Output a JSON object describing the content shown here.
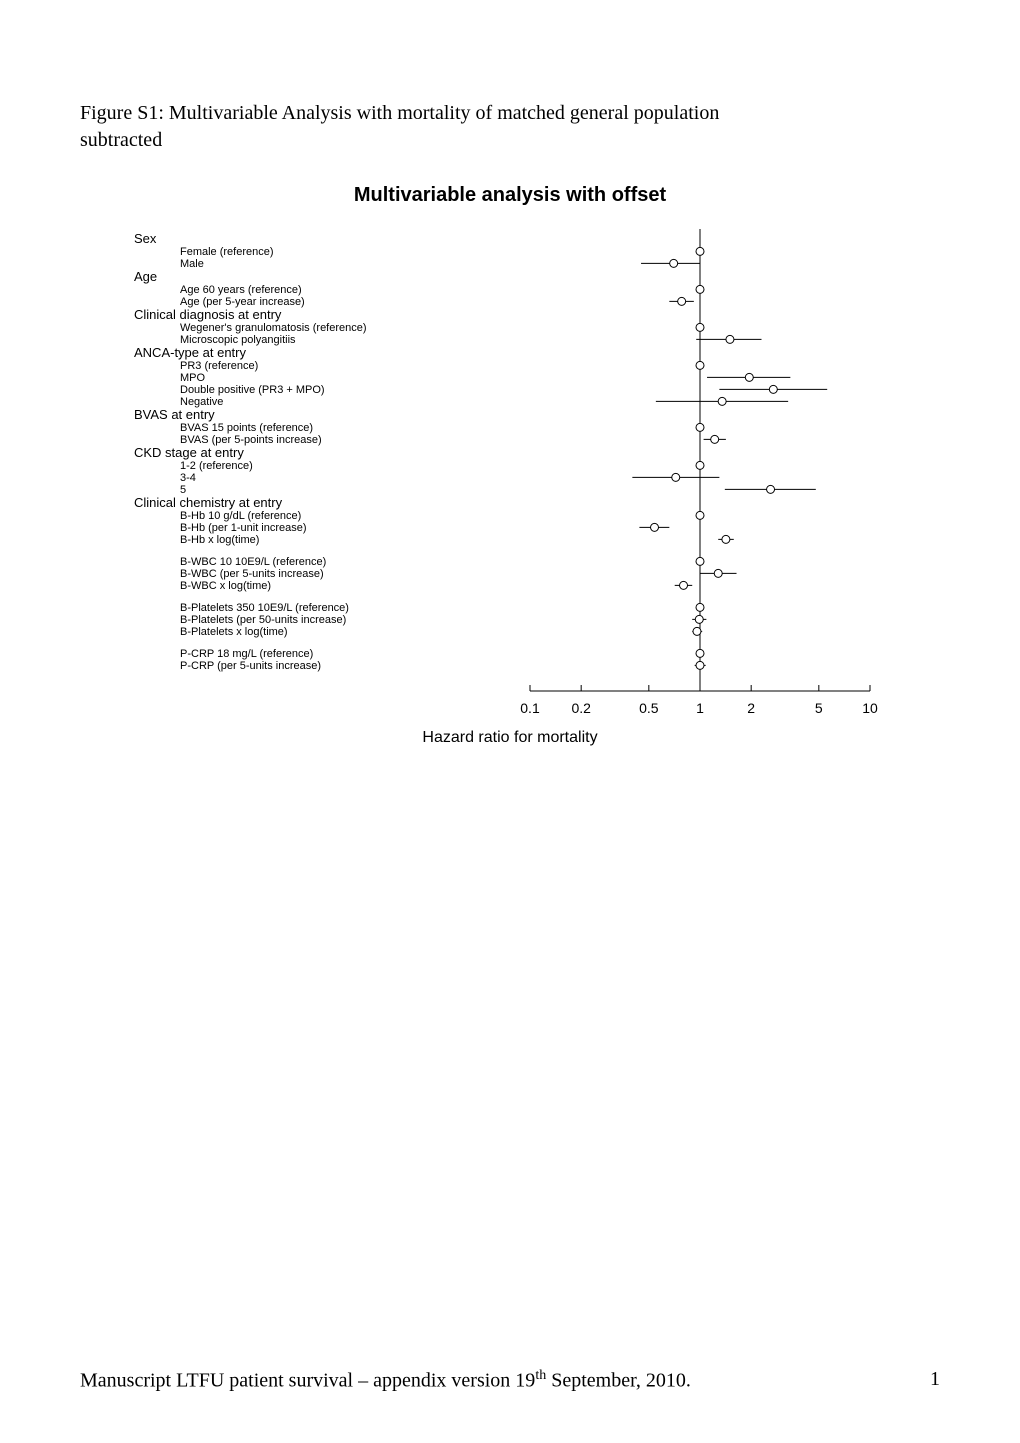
{
  "caption_line1": "Figure S1: Multivariable Analysis with mortality of matched general population",
  "caption_line2": "subtracted",
  "chart": {
    "title": "Multivariable analysis with offset",
    "x_axis_label": "Hazard ratio for mortality",
    "x_ticks": [
      0.1,
      0.2,
      0.5,
      1,
      2,
      5,
      10
    ],
    "x_scale": "log",
    "ref_line_x": 1,
    "colors": {
      "axis": "#000000",
      "text": "#000000",
      "marker_stroke": "#000000",
      "marker_fill": "#ffffff",
      "ci_line": "#000000",
      "ref_line": "#000000",
      "background": "#ffffff"
    },
    "font_family_labels": "Arial, Helvetica, sans-serif",
    "group_fontsize": 13,
    "row_fontsize": 11,
    "tick_fontsize": 14,
    "marker_radius": 4,
    "line_width": 1,
    "groups": [
      {
        "label": "Sex",
        "rows": [
          {
            "label": "Female (reference)",
            "hr": 1,
            "low": null,
            "high": null,
            "ref": true
          },
          {
            "label": "Male",
            "hr": 0.7,
            "low": 0.45,
            "high": 1.0
          }
        ]
      },
      {
        "label": "Age",
        "rows": [
          {
            "label": "Age 60 years (reference)",
            "hr": 1,
            "low": null,
            "high": null,
            "ref": true
          },
          {
            "label": "Age (per 5-year increase)",
            "hr": 0.78,
            "low": 0.66,
            "high": 0.92
          }
        ]
      },
      {
        "label": "Clinical diagnosis at entry",
        "rows": [
          {
            "label": "Wegener's granulomatosis (reference)",
            "hr": 1,
            "low": null,
            "high": null,
            "ref": true
          },
          {
            "label": "Microscopic polyangitiis",
            "hr": 1.5,
            "low": 0.95,
            "high": 2.3
          }
        ]
      },
      {
        "label": "ANCA-type at entry",
        "rows": [
          {
            "label": "PR3 (reference)",
            "hr": 1,
            "low": null,
            "high": null,
            "ref": true
          },
          {
            "label": "MPO",
            "hr": 1.95,
            "low": 1.1,
            "high": 3.4
          },
          {
            "label": "Double positive (PR3 + MPO)",
            "hr": 2.7,
            "low": 1.3,
            "high": 5.6
          },
          {
            "label": "Negative",
            "hr": 1.35,
            "low": 0.55,
            "high": 3.3
          }
        ]
      },
      {
        "label": "BVAS at entry",
        "rows": [
          {
            "label": "BVAS 15 points (reference)",
            "hr": 1,
            "low": null,
            "high": null,
            "ref": true
          },
          {
            "label": "BVAS (per 5-points increase)",
            "hr": 1.22,
            "low": 1.05,
            "high": 1.42
          }
        ]
      },
      {
        "label": "CKD stage at entry",
        "rows": [
          {
            "label": "1-2 (reference)",
            "hr": 1,
            "low": null,
            "high": null,
            "ref": true
          },
          {
            "label": "3-4",
            "hr": 0.72,
            "low": 0.4,
            "high": 1.3
          },
          {
            "label": "5",
            "hr": 2.6,
            "low": 1.4,
            "high": 4.8
          }
        ]
      },
      {
        "label": "Clinical chemistry at entry",
        "rows": [
          {
            "label": "B-Hb 10 g/dL (reference)",
            "hr": 1,
            "low": null,
            "high": null,
            "ref": true
          },
          {
            "label": "B-Hb (per 1-unit increase)",
            "hr": 0.54,
            "low": 0.44,
            "high": 0.66
          },
          {
            "label": "B-Hb x log(time)",
            "hr": 1.42,
            "low": 1.28,
            "high": 1.58
          },
          {
            "label": "",
            "spacer": true
          },
          {
            "label": "B-WBC 10 10E9/L (reference)",
            "hr": 1,
            "low": null,
            "high": null,
            "ref": true
          },
          {
            "label": "B-WBC (per 5-units increase)",
            "hr": 1.28,
            "low": 1.0,
            "high": 1.64
          },
          {
            "label": "B-WBC x log(time)",
            "hr": 0.8,
            "low": 0.71,
            "high": 0.9
          },
          {
            "label": "",
            "spacer": true
          },
          {
            "label": "B-Platelets 350 10E9/L (reference)",
            "hr": 1,
            "low": null,
            "high": null,
            "ref": true
          },
          {
            "label": "B-Platelets (per 50-units increase)",
            "hr": 0.99,
            "low": 0.9,
            "high": 1.09
          },
          {
            "label": "B-Platelets x log(time)",
            "hr": 0.96,
            "low": 0.9,
            "high": 1.03
          },
          {
            "label": "",
            "spacer": true
          },
          {
            "label": "P-CRP 18 mg/L (reference)",
            "hr": 1,
            "low": null,
            "high": null,
            "ref": true
          },
          {
            "label": "P-CRP (per 5-units increase)",
            "hr": 1.0,
            "low": 0.93,
            "high": 1.08
          }
        ]
      }
    ]
  },
  "footer": {
    "left_prefix": "Manuscript LTFU patient survival – appendix version 19",
    "left_sup": "th",
    "left_suffix": " September, 2010.",
    "page_number": "1"
  }
}
